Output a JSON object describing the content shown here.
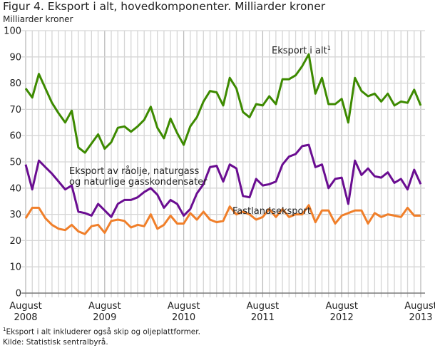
{
  "chart_data": {
    "type": "line",
    "title": "Figur 4. Eksport i alt, hovedkomponenter. Milliarder kroner",
    "ylabel": "Milliarder kroner",
    "xlabel": "",
    "ylim": [
      0,
      100
    ],
    "yticks": [
      0,
      10,
      20,
      30,
      40,
      50,
      60,
      70,
      80,
      90,
      100
    ],
    "x_start": "August 2008",
    "x_end": "August 2013",
    "frequency": "monthly",
    "xticks": [
      {
        "month": "August",
        "year": "2008",
        "index": 0
      },
      {
        "month": "August",
        "year": "2009",
        "index": 12
      },
      {
        "month": "August",
        "year": "2010",
        "index": 24
      },
      {
        "month": "August",
        "year": "2011",
        "index": 36
      },
      {
        "month": "August",
        "year": "2012",
        "index": 48
      },
      {
        "month": "August",
        "year": "2013",
        "index": 60
      }
    ],
    "grid": true,
    "series": [
      {
        "name": "Eksport i alt",
        "label_suffix": "1",
        "color": "#3d8a00",
        "values": [
          78,
          74.5,
          83.5,
          78,
          72.5,
          68.5,
          65,
          69.5,
          55.5,
          53.5,
          57,
          60.5,
          55,
          57.5,
          63,
          63.5,
          61.5,
          63.5,
          66,
          71,
          63,
          59,
          66.5,
          61,
          56.5,
          63.5,
          67,
          73,
          77,
          76.5,
          71.5,
          82,
          78,
          69,
          67,
          72,
          71.5,
          75,
          72,
          81.5,
          81.5,
          83,
          86.5,
          91,
          76,
          82,
          72,
          72,
          74,
          65,
          82,
          77,
          75,
          76,
          73,
          76,
          71.5,
          73,
          72.5,
          77.5,
          71.5
        ]
      },
      {
        "name": "Eksport av råolje, naturgass",
        "name_line2": "og naturlige gasskondensater",
        "color": "#6a0d91",
        "values": [
          49,
          39.5,
          50.5,
          48,
          45.5,
          42.5,
          39.5,
          41,
          31,
          30.5,
          29.5,
          34,
          31.5,
          29,
          34,
          35.5,
          35.5,
          36.5,
          38.5,
          40,
          37.5,
          32.5,
          35.5,
          34,
          29.5,
          32,
          38,
          41.5,
          48,
          48.5,
          42.5,
          49,
          47.5,
          37,
          36.5,
          43.5,
          41,
          41.5,
          42.5,
          49,
          52,
          53,
          56,
          56.5,
          48,
          49,
          40,
          43.5,
          44,
          34,
          50.5,
          45,
          47.5,
          44.5,
          44,
          46,
          42,
          43.5,
          39.5,
          47,
          41.5
        ]
      },
      {
        "name": "Fastlandseksport",
        "color": "#f07f2a",
        "values": [
          28.5,
          32.5,
          32.5,
          28.5,
          26,
          24.5,
          24,
          26,
          23.5,
          22.5,
          25.5,
          26,
          23,
          27.5,
          28,
          27.5,
          25,
          26,
          25.5,
          30,
          24.5,
          26,
          29.5,
          26.5,
          26.5,
          30.5,
          28,
          31,
          28,
          27,
          27.5,
          33,
          30,
          31,
          30,
          28,
          29,
          32,
          29,
          32,
          29,
          30,
          30,
          33.5,
          27,
          31.5,
          31.5,
          26.5,
          29.5,
          30.5,
          31.5,
          31.5,
          26.5,
          30.5,
          29,
          30,
          29.5,
          29,
          32.5,
          29.5,
          29.5
        ]
      }
    ],
    "footnote_mark": "1",
    "footnote": "Eksport i alt inkluderer også skip og oljeplattformer.",
    "source": "Kilde: Statistisk sentralbyrå."
  }
}
